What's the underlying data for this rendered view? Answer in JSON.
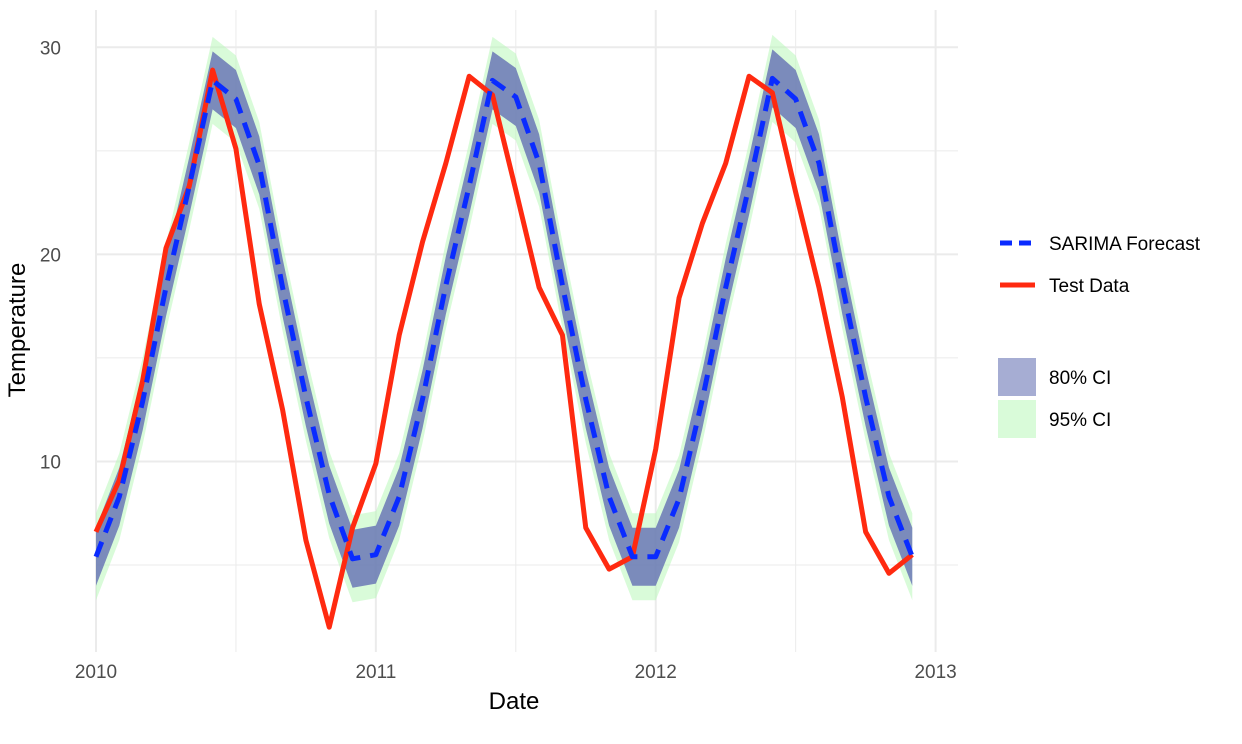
{
  "colors": {
    "forecast": "#0a2bff",
    "test": "#ff2a10",
    "ci80": "#6a77b5",
    "ci95": "#b9f7b9",
    "grid": "#ebebeb"
  },
  "chart_data": {
    "type": "line",
    "xlabel": "Date",
    "ylabel": "Temperature",
    "xlim": [
      2010,
      2013.08
    ],
    "ylim": [
      0.8,
      31.8
    ],
    "x_ticks": [
      2010,
      2011,
      2012,
      2013
    ],
    "y_ticks": [
      10,
      20,
      30
    ],
    "x_tick_labels": [
      "2010",
      "2011",
      "2012",
      "2013"
    ],
    "y_tick_labels": [
      "10",
      "20",
      "30"
    ],
    "grid": true,
    "legend_position": "right",
    "x": [
      "2010-01",
      "2010-02",
      "2010-03",
      "2010-04",
      "2010-05",
      "2010-06",
      "2010-07",
      "2010-08",
      "2010-09",
      "2010-10",
      "2010-11",
      "2010-12",
      "2011-01",
      "2011-02",
      "2011-03",
      "2011-04",
      "2011-05",
      "2011-06",
      "2011-07",
      "2011-08",
      "2011-09",
      "2011-10",
      "2011-11",
      "2011-12",
      "2012-01",
      "2012-02",
      "2012-03",
      "2012-04",
      "2012-05",
      "2012-06",
      "2012-07",
      "2012-08",
      "2012-09",
      "2012-10",
      "2012-11",
      "2012-12"
    ],
    "series": [
      {
        "name": "SARIMA Forecast",
        "style": "dashed",
        "values": [
          5.4,
          8.3,
          12.9,
          18.4,
          23.3,
          28.4,
          27.5,
          24.3,
          18.4,
          13.1,
          8.4,
          5.3,
          5.5,
          8.3,
          13.0,
          18.5,
          23.3,
          28.4,
          27.6,
          24.4,
          18.5,
          13.0,
          8.3,
          5.4,
          5.4,
          8.2,
          13.0,
          18.4,
          23.3,
          28.5,
          27.5,
          24.4,
          18.5,
          13.1,
          8.3,
          5.4
        ]
      },
      {
        "name": "Test Data",
        "style": "solid",
        "values": [
          6.6,
          9.1,
          13.9,
          20.3,
          23.3,
          28.9,
          25.1,
          17.6,
          12.5,
          6.2,
          2.0,
          6.8,
          9.9,
          16.1,
          20.6,
          24.4,
          28.6,
          27.7,
          23.1,
          18.4,
          16.1,
          6.8,
          4.8,
          5.4,
          10.6,
          17.9,
          21.5,
          24.4,
          28.6,
          27.8,
          23.0,
          18.4,
          13.1,
          6.6,
          4.6,
          5.5
        ]
      }
    ],
    "ribbons": [
      {
        "name": "95% CI",
        "lower_offset": -2.1,
        "upper_offset": 2.1
      },
      {
        "name": "80% CI",
        "lower_offset": -1.4,
        "upper_offset": 1.4
      }
    ],
    "legend": {
      "lines": [
        "SARIMA Forecast",
        "Test Data"
      ],
      "fills": [
        "80% CI",
        "95% CI"
      ]
    }
  }
}
